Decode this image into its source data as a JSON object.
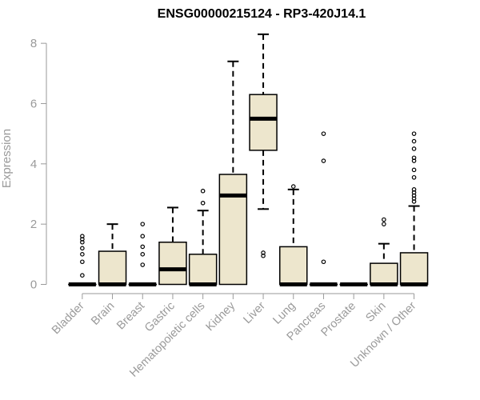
{
  "colors": {
    "box_fill": "#ede6cd",
    "stroke": "#000000",
    "axis": "#9a9a9a",
    "text_gray": "#9a9a9a",
    "title": "#000000"
  },
  "chart_data": {
    "type": "boxplot",
    "title": "ENSG00000215124 - RP3-420J14.1",
    "xlabel": "",
    "ylabel": "Expression",
    "ylim": [
      0,
      8.3
    ],
    "yticks": [
      0,
      2,
      4,
      6,
      8
    ],
    "grid": false,
    "categories": [
      "Bladder",
      "Brain",
      "Breast",
      "Gastric",
      "Hematopoietic cells",
      "Kidney",
      "Liver",
      "Lung",
      "Pancreas",
      "Prostate",
      "Skin",
      "Unknown / Other"
    ],
    "boxes": [
      {
        "category": "Bladder",
        "q1": 0,
        "median": 0,
        "q3": 0,
        "whisker_low": 0,
        "whisker_high": 0,
        "outliers": [
          0.3,
          0.75,
          1.0,
          1.2,
          1.4,
          1.5,
          1.6
        ]
      },
      {
        "category": "Brain",
        "q1": 0,
        "median": 0,
        "q3": 1.1,
        "whisker_low": 0,
        "whisker_high": 2.0,
        "outliers": []
      },
      {
        "category": "Breast",
        "q1": 0,
        "median": 0,
        "q3": 0,
        "whisker_low": 0,
        "whisker_high": 0,
        "outliers": [
          0.65,
          1.0,
          1.25,
          1.6,
          2.0
        ]
      },
      {
        "category": "Gastric",
        "q1": 0,
        "median": 0.5,
        "q3": 1.4,
        "whisker_low": 0,
        "whisker_high": 2.55,
        "outliers": []
      },
      {
        "category": "Hematopoietic cells",
        "q1": 0,
        "median": 0,
        "q3": 1.0,
        "whisker_low": 0,
        "whisker_high": 2.45,
        "outliers": [
          2.7,
          3.1
        ]
      },
      {
        "category": "Kidney",
        "q1": 0,
        "median": 2.95,
        "q3": 3.65,
        "whisker_low": 0,
        "whisker_high": 7.4,
        "outliers": []
      },
      {
        "category": "Liver",
        "q1": 4.45,
        "median": 5.5,
        "q3": 6.3,
        "whisker_low": 2.5,
        "whisker_high": 8.3,
        "outliers": [
          0.95,
          1.05
        ]
      },
      {
        "category": "Lung",
        "q1": 0,
        "median": 0,
        "q3": 1.25,
        "whisker_low": 0,
        "whisker_high": 3.15,
        "outliers": [
          3.25
        ]
      },
      {
        "category": "Pancreas",
        "q1": 0,
        "median": 0,
        "q3": 0,
        "whisker_low": 0,
        "whisker_high": 0,
        "outliers": [
          0.75,
          4.1,
          5.0
        ]
      },
      {
        "category": "Prostate",
        "q1": 0,
        "median": 0,
        "q3": 0,
        "whisker_low": 0,
        "whisker_high": 0,
        "outliers": []
      },
      {
        "category": "Skin",
        "q1": 0,
        "median": 0,
        "q3": 0.7,
        "whisker_low": 0,
        "whisker_high": 1.35,
        "outliers": [
          2.0,
          2.15
        ]
      },
      {
        "category": "Unknown / Other",
        "q1": 0,
        "median": 0,
        "q3": 1.05,
        "whisker_low": 0,
        "whisker_high": 2.6,
        "outliers": [
          2.75,
          2.85,
          2.95,
          3.05,
          3.15,
          3.55,
          3.8,
          4.1,
          4.2,
          4.5,
          4.75,
          5.0
        ]
      }
    ]
  }
}
